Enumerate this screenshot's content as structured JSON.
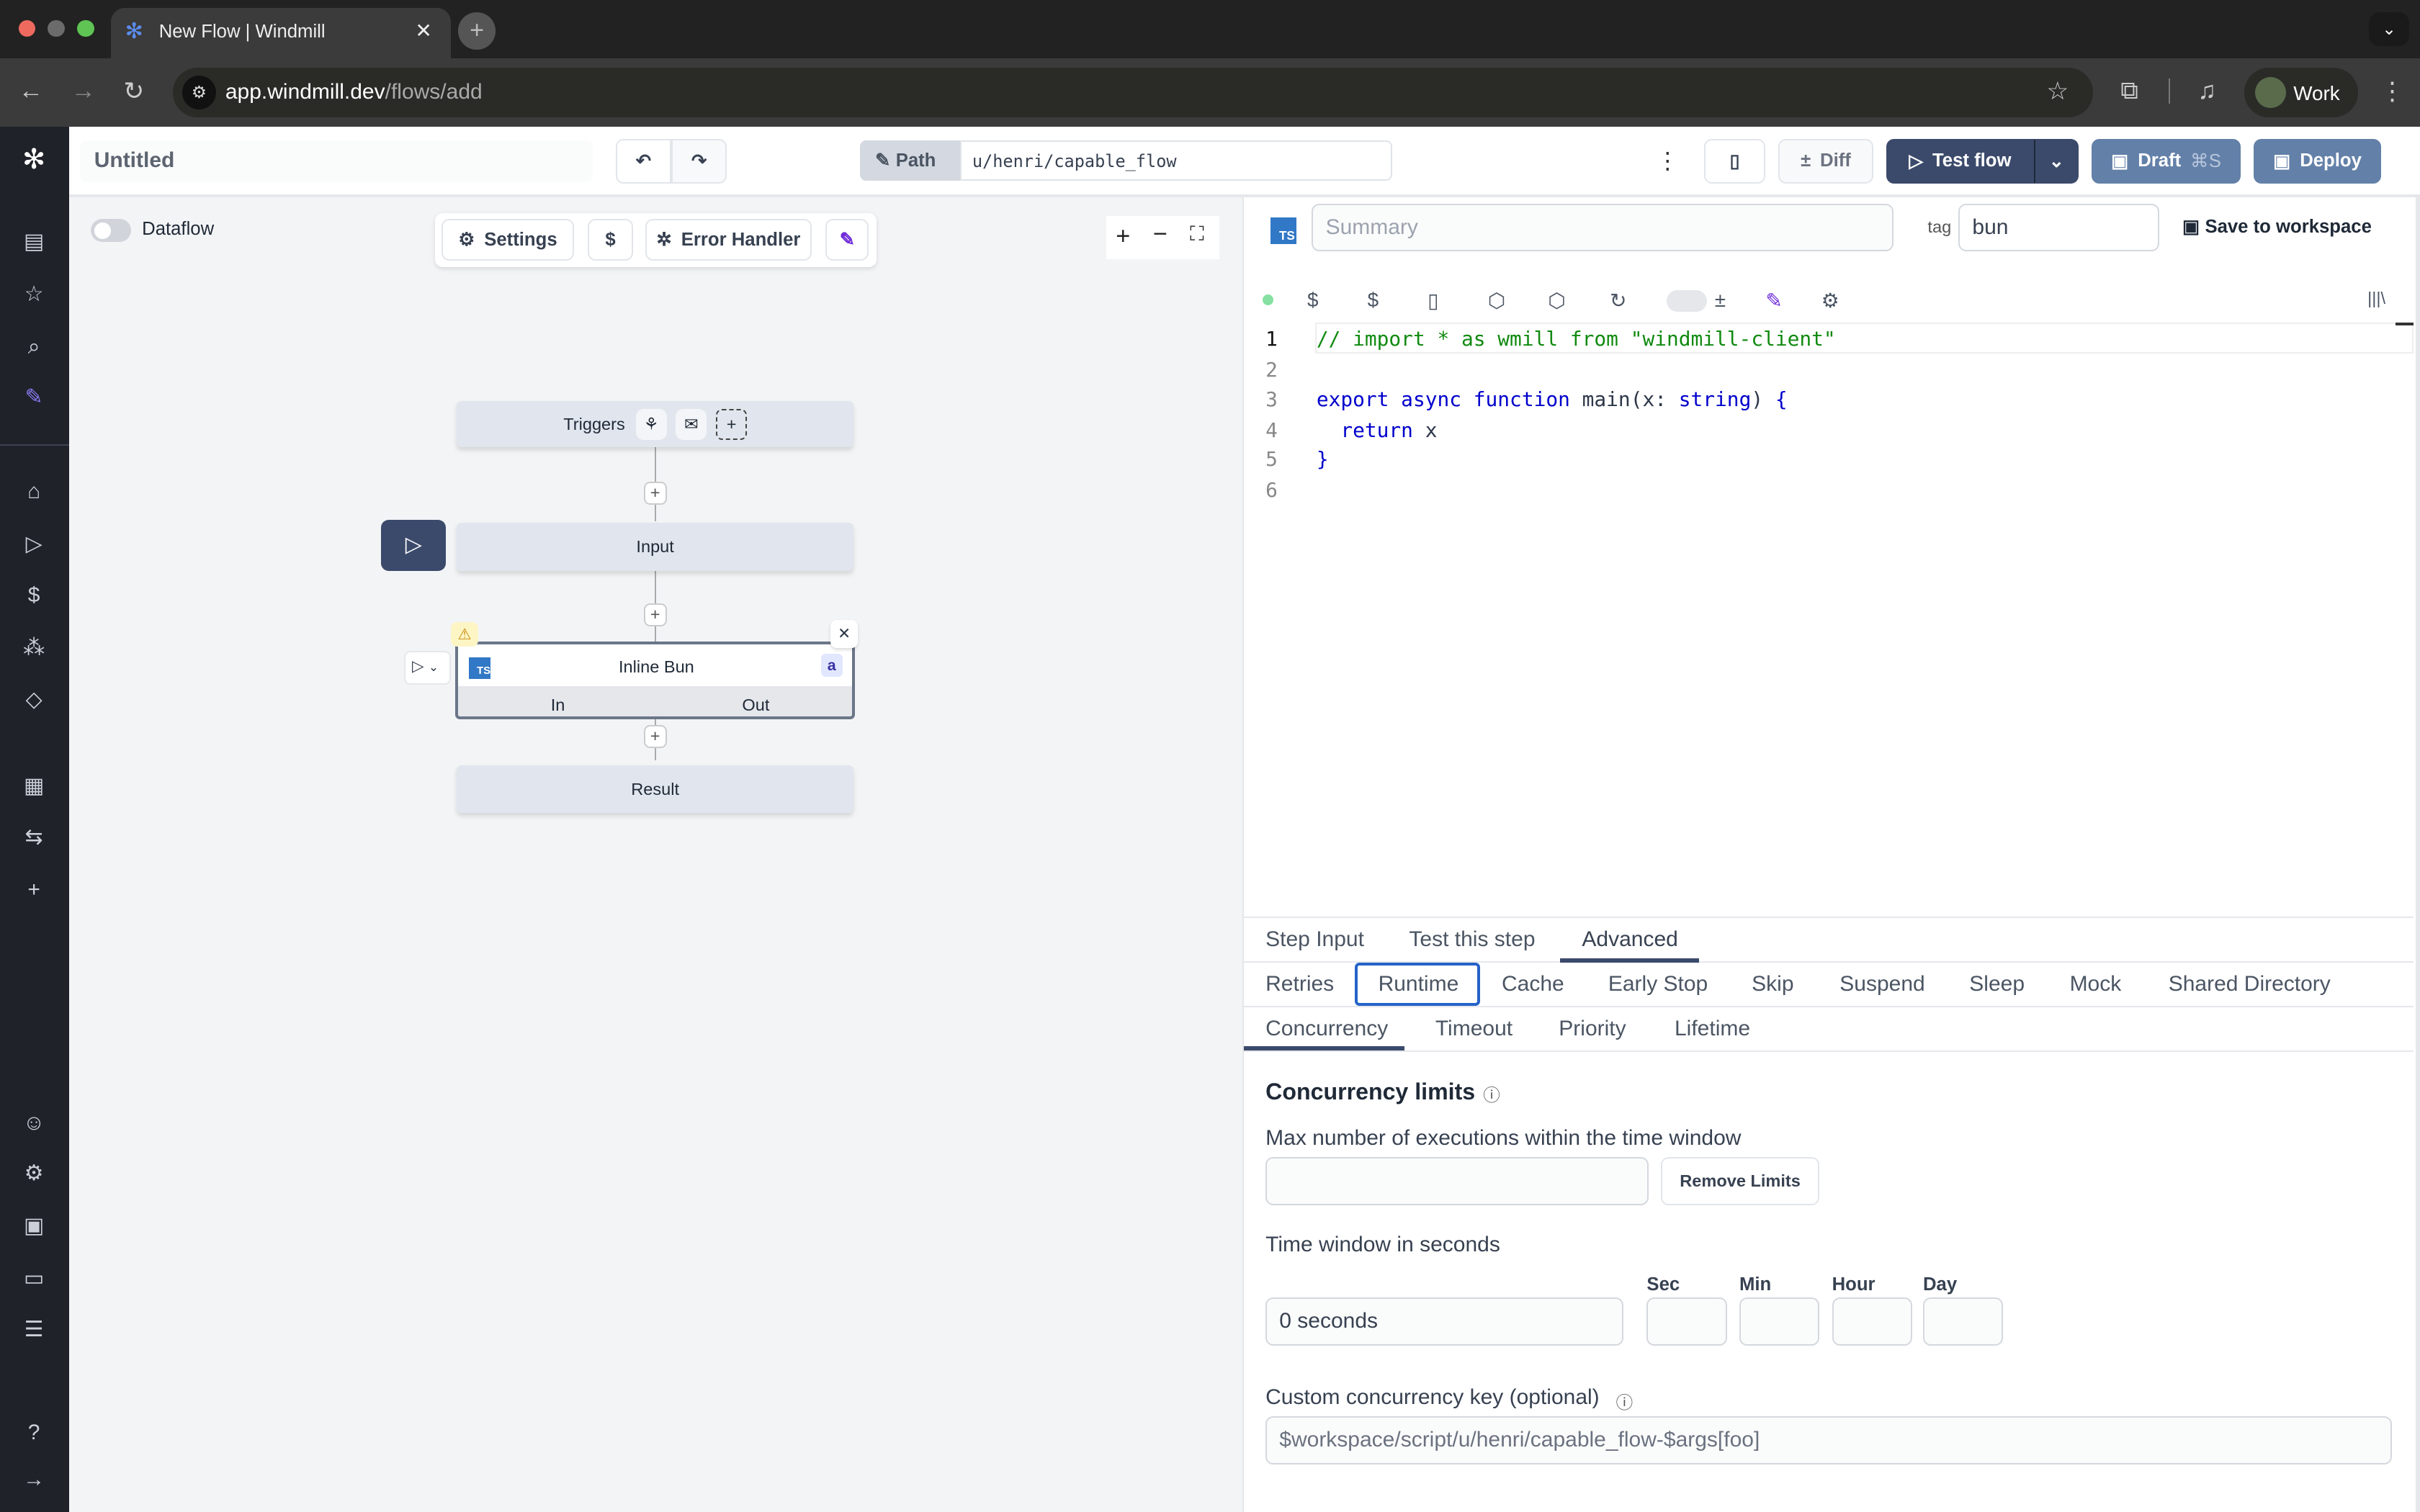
{
  "browser": {
    "tab_title": "New Flow | Windmill",
    "url_host": "app.windmill.dev",
    "url_path": "/flows/add",
    "profile": "Work"
  },
  "header": {
    "title": "Untitled",
    "path_label": "Path",
    "path_value": "u/henri/capable_flow",
    "diff": "Diff",
    "test_flow": "Test flow",
    "draft": "Draft",
    "draft_shortcut": "⌘S",
    "deploy": "Deploy"
  },
  "canvas": {
    "dataflow_label": "Dataflow",
    "dataflow_on": false,
    "settings": "Settings",
    "dollar": "$",
    "error_handler": "Error Handler",
    "nodes": {
      "triggers": "Triggers",
      "input": "Input",
      "step": "Inline Bun",
      "step_badge": "a",
      "step_in": "In",
      "step_out": "Out",
      "result": "Result"
    }
  },
  "editor": {
    "summary_placeholder": "Summary",
    "tag_label": "tag",
    "tag_value": "bun",
    "save_to_workspace": "Save to workspace",
    "line_numbers": [
      "1",
      "2",
      "3",
      "4",
      "5",
      "6"
    ],
    "lines": [
      "// import * as wmill from \"windmill-client\"",
      "",
      "export async function main(x: string) {",
      "  return x",
      "}",
      ""
    ]
  },
  "tabs": {
    "main": [
      "Step Input",
      "Test this step",
      "Advanced"
    ],
    "main_active": "Advanced",
    "advanced": [
      "Retries",
      "Runtime",
      "Cache",
      "Early Stop",
      "Skip",
      "Suspend",
      "Sleep",
      "Mock",
      "Shared Directory"
    ],
    "advanced_active": "Runtime",
    "runtime": [
      "Concurrency",
      "Timeout",
      "Priority",
      "Lifetime"
    ],
    "runtime_active": "Concurrency"
  },
  "concurrency": {
    "heading": "Concurrency limits",
    "max_label": "Max number of executions within the time window",
    "max_value": "",
    "remove_limits": "Remove Limits",
    "window_label": "Time window in seconds",
    "window_value": "0 seconds",
    "units": [
      "Sec",
      "Min",
      "Hour",
      "Day"
    ],
    "key_label": "Custom concurrency key (optional)",
    "key_placeholder": "$workspace/script/u/henri/capable_flow-$args[foo]"
  },
  "colors": {
    "primary": "#3b4a6b",
    "draft": "#6380a8",
    "canvas_bg": "#f3f4f6",
    "sidebar": "#1f2229",
    "node": "#e1e6ee"
  }
}
